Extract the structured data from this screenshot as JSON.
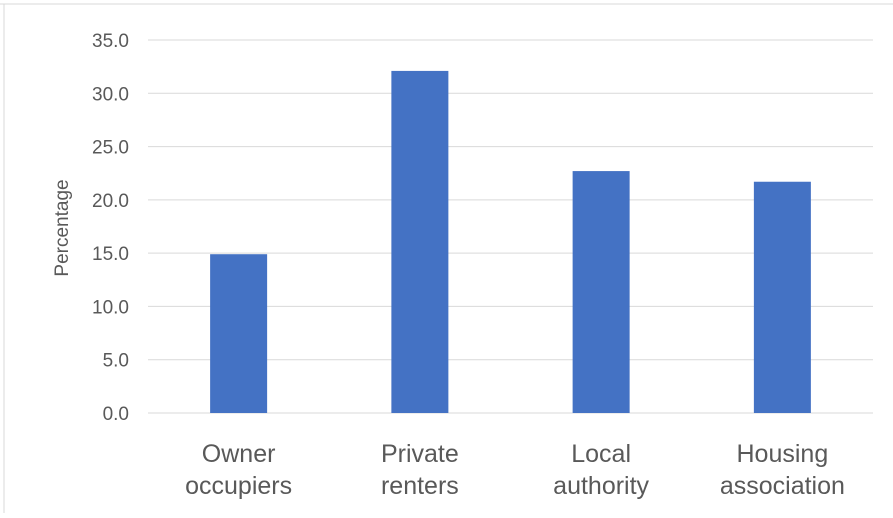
{
  "chart_data": {
    "type": "bar",
    "categories": [
      [
        "Owner",
        "occupiers"
      ],
      [
        "Private",
        "renters"
      ],
      [
        "Local",
        "authority"
      ],
      [
        "Housing",
        "association"
      ]
    ],
    "values": [
      14.9,
      32.1,
      22.7,
      21.7
    ],
    "ylabel": "Percentage",
    "xlabel": "",
    "ylim": [
      0,
      35
    ],
    "yticks": [
      "0.0",
      "5.0",
      "10.0",
      "15.0",
      "20.0",
      "25.0",
      "30.0",
      "35.0"
    ],
    "grid": true,
    "legend": "none",
    "bar_color": "#4472C4",
    "grid_color": "#D9D9D9"
  }
}
